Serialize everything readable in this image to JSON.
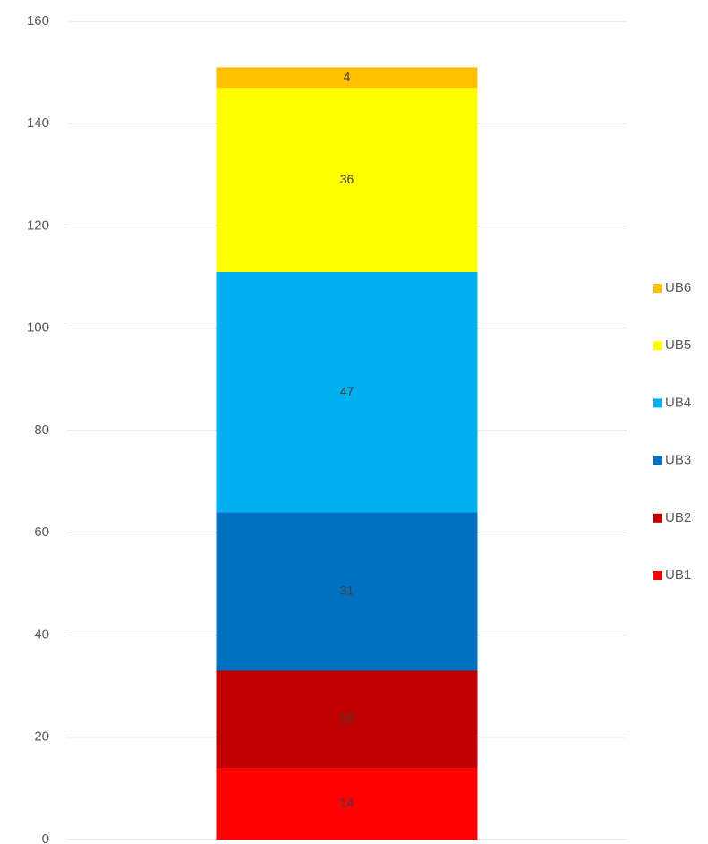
{
  "chart_data": {
    "type": "bar",
    "stacked": true,
    "categories": [
      null
    ],
    "series": [
      {
        "name": "UB1",
        "color": "#ff0000",
        "values": [
          14
        ]
      },
      {
        "name": "UB2",
        "color": "#c00000",
        "values": [
          19
        ]
      },
      {
        "name": "UB3",
        "color": "#0070c0",
        "values": [
          31
        ]
      },
      {
        "name": "UB4",
        "color": "#00b0f0",
        "values": [
          47
        ]
      },
      {
        "name": "UB5",
        "color": "#ffff00",
        "values": [
          36
        ]
      },
      {
        "name": "UB6",
        "color": "#ffc000",
        "values": [
          4
        ]
      }
    ],
    "ylim": [
      0,
      160
    ],
    "yticks": [
      0,
      20,
      40,
      60,
      80,
      100,
      120,
      140,
      160
    ],
    "grid": true,
    "legend": "right",
    "data_labels": true
  }
}
